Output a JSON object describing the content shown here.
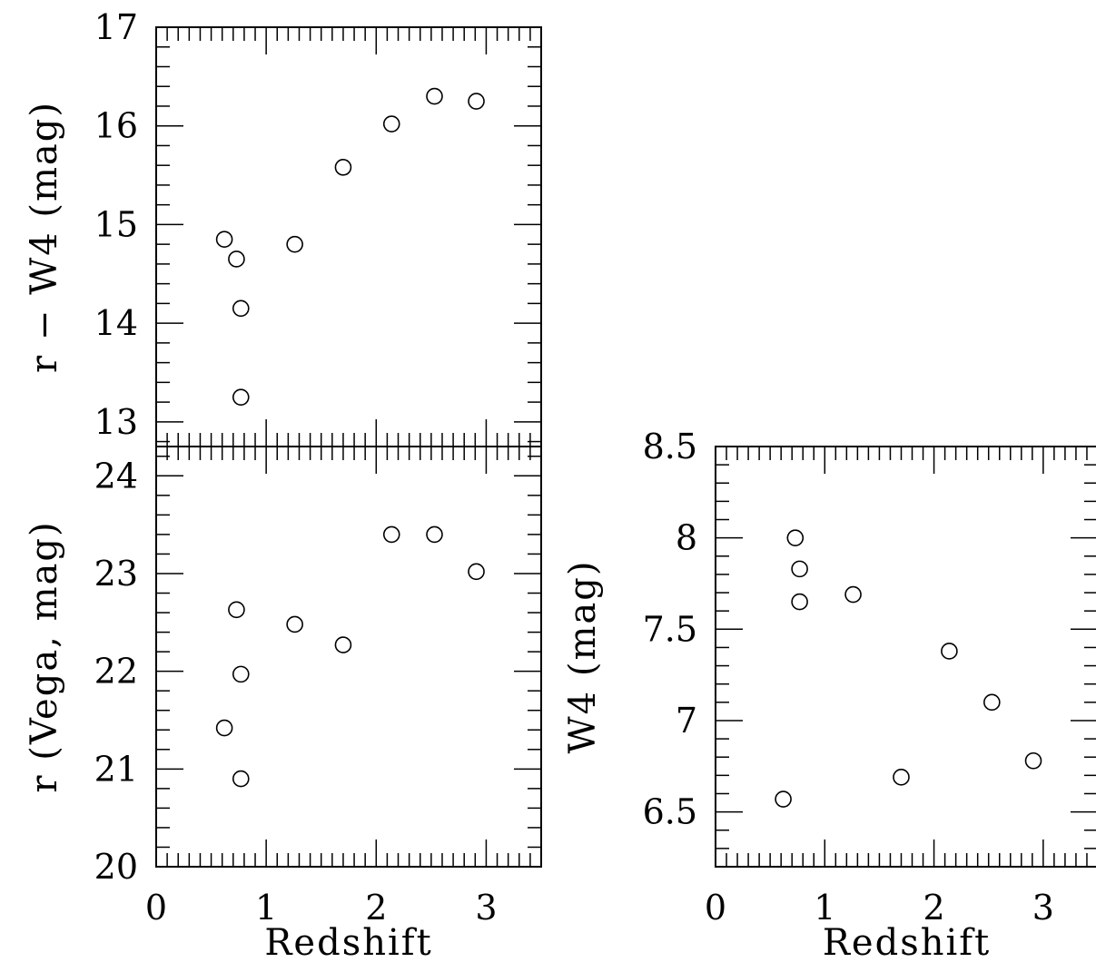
{
  "chart_data": [
    {
      "type": "scatter",
      "panel": "top-left",
      "xlabel": "",
      "ylabel": "r − W4 (mag)",
      "xlim": [
        0,
        3.5
      ],
      "ylim": [
        12.75,
        17
      ],
      "xticks": [
        0,
        1,
        2,
        3
      ],
      "yticks": [
        13,
        14,
        15,
        16,
        17
      ],
      "xtick_labels": [],
      "ytick_labels": [
        "13",
        "14",
        "15",
        "16",
        "17"
      ],
      "grid": false,
      "marker": "open-circle",
      "points": [
        {
          "x": 0.62,
          "y": 14.85
        },
        {
          "x": 0.73,
          "y": 14.65
        },
        {
          "x": 0.77,
          "y": 14.15
        },
        {
          "x": 0.77,
          "y": 13.25
        },
        {
          "x": 1.26,
          "y": 14.8
        },
        {
          "x": 1.7,
          "y": 15.58
        },
        {
          "x": 2.14,
          "y": 16.02
        },
        {
          "x": 2.53,
          "y": 16.3
        },
        {
          "x": 2.91,
          "y": 16.25
        }
      ]
    },
    {
      "type": "scatter",
      "panel": "bottom-left",
      "xlabel": "Redshift",
      "ylabel": "r (Vega, mag)",
      "xlim": [
        0,
        3.5
      ],
      "ylim": [
        20,
        24.3
      ],
      "xticks": [
        0,
        1,
        2,
        3
      ],
      "yticks": [
        20,
        21,
        22,
        23,
        24
      ],
      "xtick_labels": [
        "0",
        "1",
        "2",
        "3"
      ],
      "ytick_labels": [
        "20",
        "21",
        "22",
        "23",
        "24"
      ],
      "grid": false,
      "marker": "open-circle",
      "points": [
        {
          "x": 0.62,
          "y": 21.42
        },
        {
          "x": 0.73,
          "y": 22.63
        },
        {
          "x": 0.77,
          "y": 21.97
        },
        {
          "x": 0.77,
          "y": 20.9
        },
        {
          "x": 1.26,
          "y": 22.48
        },
        {
          "x": 1.7,
          "y": 22.27
        },
        {
          "x": 2.14,
          "y": 23.4
        },
        {
          "x": 2.53,
          "y": 23.4
        },
        {
          "x": 2.91,
          "y": 23.02
        }
      ]
    },
    {
      "type": "scatter",
      "panel": "right",
      "xlabel": "Redshift",
      "ylabel": "W4 (mag)",
      "xlim": [
        0,
        3.5
      ],
      "ylim": [
        6.2,
        8.5
      ],
      "xticks": [
        0,
        1,
        2,
        3
      ],
      "yticks": [
        6.5,
        7,
        7.5,
        8,
        8.5
      ],
      "xtick_labels": [
        "0",
        "1",
        "2",
        "3"
      ],
      "ytick_labels": [
        "6.5",
        "7",
        "7.5",
        "8",
        "8.5"
      ],
      "grid": false,
      "marker": "open-circle",
      "points": [
        {
          "x": 0.62,
          "y": 6.57
        },
        {
          "x": 0.73,
          "y": 8.0
        },
        {
          "x": 0.77,
          "y": 7.83
        },
        {
          "x": 0.77,
          "y": 7.65
        },
        {
          "x": 1.26,
          "y": 7.69
        },
        {
          "x": 1.7,
          "y": 6.69
        },
        {
          "x": 2.14,
          "y": 7.38
        },
        {
          "x": 2.53,
          "y": 7.1
        },
        {
          "x": 2.91,
          "y": 6.78
        }
      ]
    }
  ]
}
